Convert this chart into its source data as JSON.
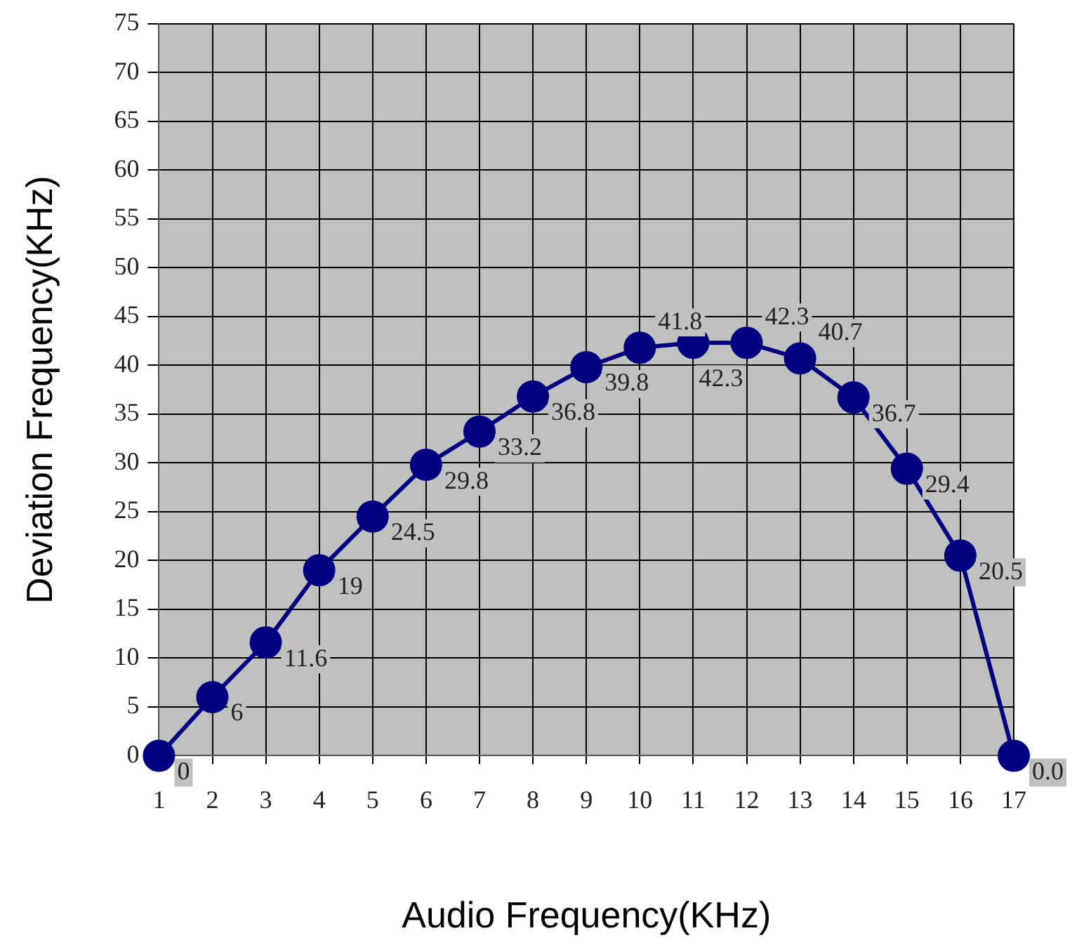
{
  "chart_data": {
    "type": "line",
    "xlabel": "Audio Frequency(KHz)",
    "ylabel": "Deviation Frequency(KHz)",
    "x": [
      1,
      2,
      3,
      4,
      5,
      6,
      7,
      8,
      9,
      10,
      11,
      12,
      13,
      14,
      15,
      16,
      17
    ],
    "series": [
      {
        "color": "#000080",
        "values": [
          0,
          6,
          11.6,
          19,
          24.5,
          29.8,
          33.2,
          36.8,
          39.8,
          41.8,
          42.3,
          42.3,
          40.7,
          36.7,
          29.4,
          20.5,
          0
        ],
        "value_labels": [
          "0",
          "6",
          "11.6",
          "19",
          "24.5",
          "29.8",
          "33.2",
          "36.8",
          "39.8",
          "41.8",
          "42.3",
          "42.3",
          "40.7",
          "36.7",
          "29.4",
          "20.5",
          "0.0"
        ]
      }
    ],
    "xlim": [
      1,
      17
    ],
    "xticks": [
      1,
      2,
      3,
      4,
      5,
      6,
      7,
      8,
      9,
      10,
      11,
      12,
      13,
      14,
      15,
      16,
      17
    ],
    "ylim": [
      0,
      75
    ],
    "yticks": [
      0,
      5,
      10,
      15,
      20,
      25,
      30,
      35,
      40,
      45,
      50,
      55,
      60,
      65,
      70,
      75
    ],
    "grid": true,
    "legend": false,
    "marker": "circle",
    "line_style": "solid"
  }
}
